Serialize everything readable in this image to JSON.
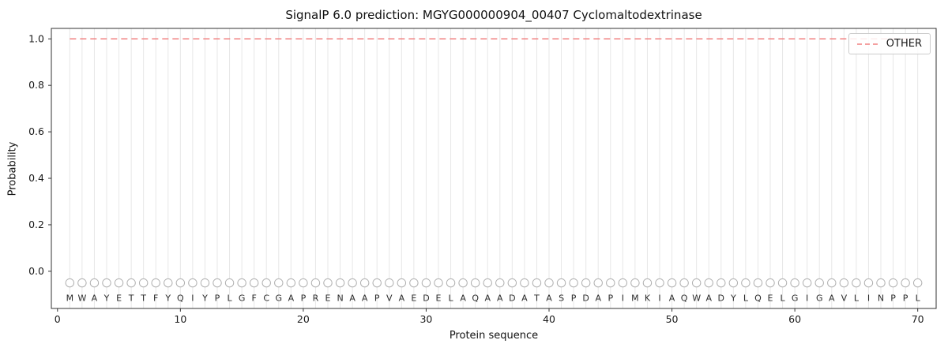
{
  "chart_data": {
    "type": "line",
    "title": "SignalP 6.0 prediction: MGYG000000904_00407 Cyclomaltodextrinase",
    "xlabel": "Protein sequence",
    "ylabel": "Probability",
    "xlim": [
      -0.5,
      71.5
    ],
    "ylim": [
      -0.16,
      1.045
    ],
    "xticks": [
      0,
      10,
      20,
      30,
      40,
      50,
      60,
      70
    ],
    "yticks": [
      "0.0",
      "0.2",
      "0.4",
      "0.6",
      "0.8",
      "1.0"
    ],
    "grid": "vertical-line-per-residue",
    "legend": {
      "position": "upper-right",
      "entries": [
        {
          "label": "OTHER",
          "color": "#f08080",
          "linestyle": "dashed"
        }
      ]
    },
    "series": [
      {
        "name": "OTHER",
        "color": "#f08080",
        "linestyle": "dashed",
        "x_start": 1,
        "x_end": 70,
        "values": [
          1.0,
          1.0,
          1.0,
          1.0,
          1.0,
          1.0,
          1.0,
          1.0,
          1.0,
          1.0,
          1.0,
          1.0,
          1.0,
          1.0,
          1.0,
          1.0,
          1.0,
          1.0,
          1.0,
          1.0,
          1.0,
          1.0,
          1.0,
          1.0,
          1.0,
          1.0,
          1.0,
          1.0,
          1.0,
          1.0,
          1.0,
          1.0,
          1.0,
          1.0,
          1.0,
          1.0,
          1.0,
          1.0,
          1.0,
          1.0,
          1.0,
          1.0,
          1.0,
          1.0,
          1.0,
          1.0,
          1.0,
          1.0,
          1.0,
          1.0,
          1.0,
          1.0,
          1.0,
          1.0,
          1.0,
          1.0,
          1.0,
          1.0,
          1.0,
          1.0,
          1.0,
          1.0,
          1.0,
          1.0,
          1.0,
          1.0,
          1.0,
          1.0,
          1.0,
          1.0
        ]
      }
    ],
    "sequence": "MWAYETTFYQIYPLGFCGAPRENAAPVAEDELAQAADATASPDAPIMKIAQWADYLQELGIGAVLINPPL",
    "marker_y": -0.05,
    "marker_style": "open-circle"
  }
}
